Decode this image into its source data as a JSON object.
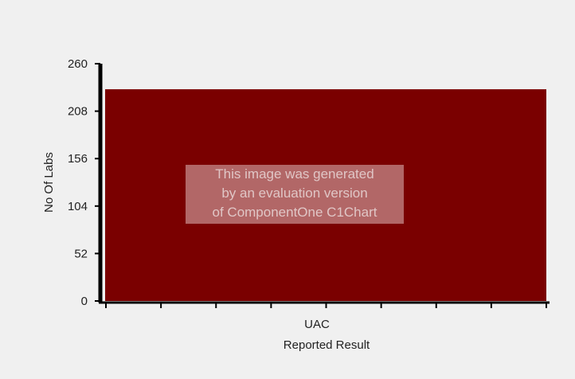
{
  "chart_data": {
    "type": "bar",
    "categories": [
      "UAC"
    ],
    "values": [
      232
    ],
    "xlabel": "Reported Result",
    "ylabel": "No Of Labs",
    "ylim": [
      0,
      260
    ],
    "yticks": [
      0,
      52,
      104,
      156,
      208,
      260
    ],
    "grid": false,
    "legend": "none",
    "bar_color": "#7a0000",
    "background_color": "#f0f0f0"
  },
  "watermark": {
    "lines": [
      "This image was generated",
      "by an evaluation version",
      "of ComponentOne C1Chart"
    ]
  }
}
